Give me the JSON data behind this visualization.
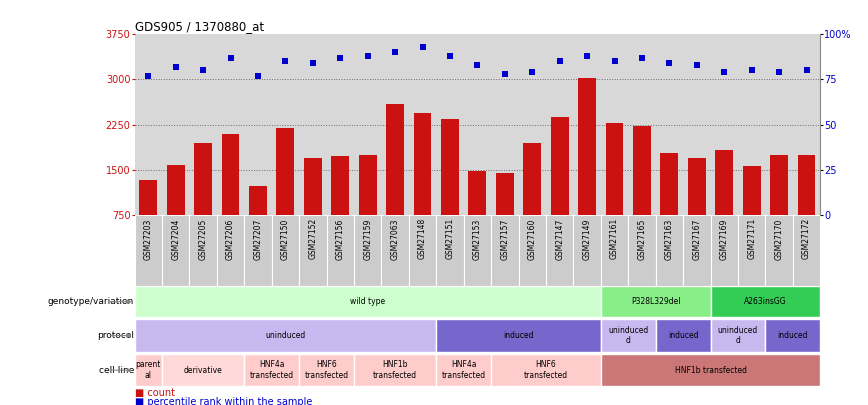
{
  "title": "GDS905 / 1370880_at",
  "samples": [
    "GSM27203",
    "GSM27204",
    "GSM27205",
    "GSM27206",
    "GSM27207",
    "GSM27150",
    "GSM27152",
    "GSM27156",
    "GSM27159",
    "GSM27063",
    "GSM27148",
    "GSM27151",
    "GSM27153",
    "GSM27157",
    "GSM27160",
    "GSM27147",
    "GSM27149",
    "GSM27161",
    "GSM27165",
    "GSM27163",
    "GSM27167",
    "GSM27169",
    "GSM27171",
    "GSM27170",
    "GSM27172"
  ],
  "count_values": [
    1320,
    1580,
    1950,
    2100,
    1230,
    2200,
    1700,
    1720,
    1750,
    2600,
    2450,
    2350,
    1480,
    1440,
    1950,
    2380,
    3020,
    2280,
    2220,
    1780,
    1700,
    1830,
    1560,
    1750,
    1750
  ],
  "pct_values": [
    77,
    82,
    80,
    87,
    77,
    85,
    84,
    87,
    88,
    90,
    93,
    88,
    83,
    78,
    79,
    85,
    88,
    85,
    87,
    84,
    83,
    79,
    80,
    79,
    80
  ],
  "ylim_left": [
    750,
    3750
  ],
  "ylim_right": [
    0,
    100
  ],
  "yticks_left": [
    750,
    1500,
    2250,
    3000,
    3750
  ],
  "yticks_right": [
    0,
    25,
    50,
    75,
    100
  ],
  "bar_color": "#cc1111",
  "dot_color": "#0000cc",
  "background_color": "#ffffff",
  "ax_bg": "#d8d8d8",
  "genotype_segments": [
    {
      "label": "wild type",
      "start": 0,
      "end": 17,
      "color": "#ccffcc"
    },
    {
      "label": "P328L329del",
      "start": 17,
      "end": 21,
      "color": "#88ee88"
    },
    {
      "label": "A263insGG",
      "start": 21,
      "end": 25,
      "color": "#33cc55"
    }
  ],
  "protocol_segments": [
    {
      "label": "uninduced",
      "start": 0,
      "end": 11,
      "color": "#c8b8f0"
    },
    {
      "label": "induced",
      "start": 11,
      "end": 17,
      "color": "#7766cc"
    },
    {
      "label": "uninduced\nd",
      "start": 17,
      "end": 19,
      "color": "#c8b8f0"
    },
    {
      "label": "induced",
      "start": 19,
      "end": 21,
      "color": "#7766cc"
    },
    {
      "label": "uninduced\nd",
      "start": 21,
      "end": 23,
      "color": "#c8b8f0"
    },
    {
      "label": "induced",
      "start": 23,
      "end": 25,
      "color": "#7766cc"
    }
  ],
  "cell_segments": [
    {
      "label": "parent\nal",
      "start": 0,
      "end": 1,
      "color": "#ffcccc"
    },
    {
      "label": "derivative",
      "start": 1,
      "end": 4,
      "color": "#ffd8d8"
    },
    {
      "label": "HNF4a\ntransfected",
      "start": 4,
      "end": 6,
      "color": "#ffcccc"
    },
    {
      "label": "HNF6\ntransfected",
      "start": 6,
      "end": 8,
      "color": "#ffcccc"
    },
    {
      "label": "HNF1b\ntransfected",
      "start": 8,
      "end": 11,
      "color": "#ffcccc"
    },
    {
      "label": "HNF4a\ntransfected",
      "start": 11,
      "end": 13,
      "color": "#ffcccc"
    },
    {
      "label": "HNF6\ntransfected",
      "start": 13,
      "end": 17,
      "color": "#ffcccc"
    },
    {
      "label": "HNF1b transfected",
      "start": 17,
      "end": 25,
      "color": "#cc7777"
    }
  ],
  "row_labels": [
    "genotype/variation",
    "protocol",
    "cell line"
  ],
  "legend_items": [
    {
      "label": "count",
      "color": "#cc1111"
    },
    {
      "label": "percentile rank within the sample",
      "color": "#0000cc"
    }
  ]
}
